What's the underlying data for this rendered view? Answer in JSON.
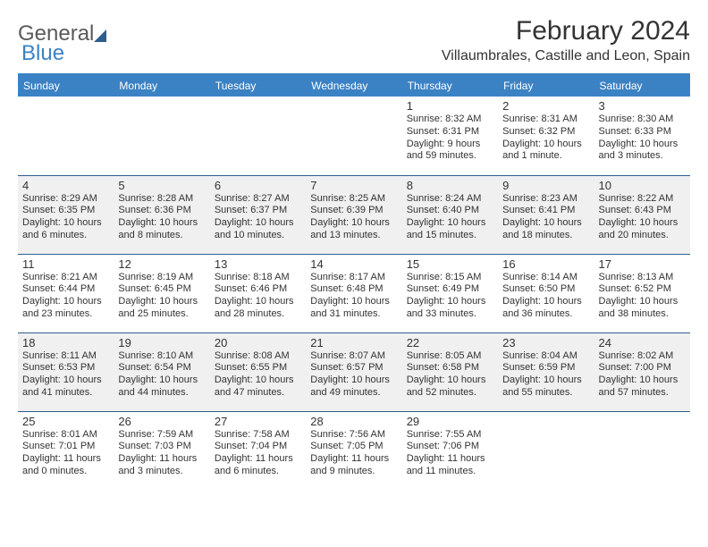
{
  "brand": {
    "name1": "General",
    "name2": "Blue"
  },
  "title": "February 2024",
  "location": "Villaumbrales, Castille and Leon, Spain",
  "columns": [
    "Sunday",
    "Monday",
    "Tuesday",
    "Wednesday",
    "Thursday",
    "Friday",
    "Saturday"
  ],
  "colors": {
    "header_bg": "#3b82c4",
    "header_text": "#ffffff",
    "row_border": "#2e5e8e",
    "alt_row_bg": "#f0f0f0",
    "text": "#333333"
  },
  "typography": {
    "title_fontsize": 30,
    "location_fontsize": 16,
    "dayheader_fontsize": 12,
    "daynum_fontsize": 13,
    "dayinfo_fontsize": 11
  },
  "weeks": [
    [
      null,
      null,
      null,
      null,
      {
        "n": "1",
        "sr": "8:32 AM",
        "ss": "6:31 PM",
        "dl": "9 hours and 59 minutes."
      },
      {
        "n": "2",
        "sr": "8:31 AM",
        "ss": "6:32 PM",
        "dl": "10 hours and 1 minute."
      },
      {
        "n": "3",
        "sr": "8:30 AM",
        "ss": "6:33 PM",
        "dl": "10 hours and 3 minutes."
      }
    ],
    [
      {
        "n": "4",
        "sr": "8:29 AM",
        "ss": "6:35 PM",
        "dl": "10 hours and 6 minutes."
      },
      {
        "n": "5",
        "sr": "8:28 AM",
        "ss": "6:36 PM",
        "dl": "10 hours and 8 minutes."
      },
      {
        "n": "6",
        "sr": "8:27 AM",
        "ss": "6:37 PM",
        "dl": "10 hours and 10 minutes."
      },
      {
        "n": "7",
        "sr": "8:25 AM",
        "ss": "6:39 PM",
        "dl": "10 hours and 13 minutes."
      },
      {
        "n": "8",
        "sr": "8:24 AM",
        "ss": "6:40 PM",
        "dl": "10 hours and 15 minutes."
      },
      {
        "n": "9",
        "sr": "8:23 AM",
        "ss": "6:41 PM",
        "dl": "10 hours and 18 minutes."
      },
      {
        "n": "10",
        "sr": "8:22 AM",
        "ss": "6:43 PM",
        "dl": "10 hours and 20 minutes."
      }
    ],
    [
      {
        "n": "11",
        "sr": "8:21 AM",
        "ss": "6:44 PM",
        "dl": "10 hours and 23 minutes."
      },
      {
        "n": "12",
        "sr": "8:19 AM",
        "ss": "6:45 PM",
        "dl": "10 hours and 25 minutes."
      },
      {
        "n": "13",
        "sr": "8:18 AM",
        "ss": "6:46 PM",
        "dl": "10 hours and 28 minutes."
      },
      {
        "n": "14",
        "sr": "8:17 AM",
        "ss": "6:48 PM",
        "dl": "10 hours and 31 minutes."
      },
      {
        "n": "15",
        "sr": "8:15 AM",
        "ss": "6:49 PM",
        "dl": "10 hours and 33 minutes."
      },
      {
        "n": "16",
        "sr": "8:14 AM",
        "ss": "6:50 PM",
        "dl": "10 hours and 36 minutes."
      },
      {
        "n": "17",
        "sr": "8:13 AM",
        "ss": "6:52 PM",
        "dl": "10 hours and 38 minutes."
      }
    ],
    [
      {
        "n": "18",
        "sr": "8:11 AM",
        "ss": "6:53 PM",
        "dl": "10 hours and 41 minutes."
      },
      {
        "n": "19",
        "sr": "8:10 AM",
        "ss": "6:54 PM",
        "dl": "10 hours and 44 minutes."
      },
      {
        "n": "20",
        "sr": "8:08 AM",
        "ss": "6:55 PM",
        "dl": "10 hours and 47 minutes."
      },
      {
        "n": "21",
        "sr": "8:07 AM",
        "ss": "6:57 PM",
        "dl": "10 hours and 49 minutes."
      },
      {
        "n": "22",
        "sr": "8:05 AM",
        "ss": "6:58 PM",
        "dl": "10 hours and 52 minutes."
      },
      {
        "n": "23",
        "sr": "8:04 AM",
        "ss": "6:59 PM",
        "dl": "10 hours and 55 minutes."
      },
      {
        "n": "24",
        "sr": "8:02 AM",
        "ss": "7:00 PM",
        "dl": "10 hours and 57 minutes."
      }
    ],
    [
      {
        "n": "25",
        "sr": "8:01 AM",
        "ss": "7:01 PM",
        "dl": "11 hours and 0 minutes."
      },
      {
        "n": "26",
        "sr": "7:59 AM",
        "ss": "7:03 PM",
        "dl": "11 hours and 3 minutes."
      },
      {
        "n": "27",
        "sr": "7:58 AM",
        "ss": "7:04 PM",
        "dl": "11 hours and 6 minutes."
      },
      {
        "n": "28",
        "sr": "7:56 AM",
        "ss": "7:05 PM",
        "dl": "11 hours and 9 minutes."
      },
      {
        "n": "29",
        "sr": "7:55 AM",
        "ss": "7:06 PM",
        "dl": "11 hours and 11 minutes."
      },
      null,
      null
    ]
  ]
}
